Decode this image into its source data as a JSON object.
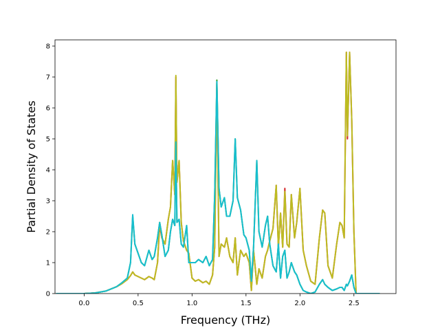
{
  "chart_data": {
    "type": "line",
    "title": "",
    "xlabel": "Frequency (THz)",
    "ylabel": "Partial Density of States",
    "xlim": [
      -0.27,
      2.89
    ],
    "ylim": [
      0,
      8.2
    ],
    "xticks": [
      0.0,
      0.5,
      1.0,
      1.5,
      2.0,
      2.5
    ],
    "xtick_labels": [
      "0.0",
      "0.5",
      "1.0",
      "1.5",
      "2.0",
      "2.5"
    ],
    "yticks": [
      0,
      1,
      2,
      3,
      4,
      5,
      6,
      7,
      8
    ],
    "ytick_labels": [
      "0",
      "1",
      "2",
      "3",
      "4",
      "5",
      "6",
      "7",
      "8"
    ],
    "grid": false,
    "legend": "none",
    "series": [
      {
        "color": "#d62728",
        "x": [
          -0.26,
          0.0,
          0.1,
          0.2,
          0.3,
          0.35,
          0.4,
          0.43,
          0.45,
          0.47,
          0.5,
          0.53,
          0.56,
          0.6,
          0.63,
          0.65,
          0.68,
          0.7,
          0.72,
          0.75,
          0.78,
          0.8,
          0.82,
          0.84,
          0.85,
          0.86,
          0.88,
          0.9,
          0.92,
          0.95,
          0.97,
          1.0,
          1.03,
          1.06,
          1.1,
          1.13,
          1.16,
          1.19,
          1.21,
          1.23,
          1.25,
          1.27,
          1.3,
          1.32,
          1.35,
          1.38,
          1.4,
          1.42,
          1.45,
          1.48,
          1.5,
          1.53,
          1.55,
          1.57,
          1.6,
          1.62,
          1.65,
          1.68,
          1.7,
          1.72,
          1.75,
          1.78,
          1.8,
          1.82,
          1.84,
          1.86,
          1.88,
          1.9,
          1.92,
          1.95,
          1.97,
          2.0,
          2.03,
          2.06,
          2.1,
          2.14,
          2.18,
          2.21,
          2.23,
          2.26,
          2.3,
          2.34,
          2.37,
          2.39,
          2.41,
          2.43,
          2.44,
          2.46,
          2.48,
          2.5,
          2.52,
          2.55,
          2.6,
          2.74
        ],
        "y": [
          0,
          0,
          0.02,
          0.08,
          0.22,
          0.32,
          0.45,
          0.58,
          0.7,
          0.6,
          0.55,
          0.5,
          0.45,
          0.55,
          0.5,
          0.45,
          1.0,
          2.2,
          1.8,
          1.6,
          2.4,
          2.8,
          4.3,
          3.2,
          7.0,
          3.6,
          4.3,
          2.3,
          1.7,
          1.4,
          1.3,
          0.5,
          0.4,
          0.45,
          0.35,
          0.4,
          0.3,
          0.6,
          1.5,
          6.8,
          1.2,
          1.6,
          1.5,
          1.8,
          1.2,
          1.0,
          1.8,
          0.6,
          1.4,
          1.2,
          1.3,
          1.0,
          0.1,
          1.4,
          0.3,
          0.8,
          0.5,
          1.2,
          1.4,
          1.7,
          2.1,
          3.5,
          1.5,
          2.6,
          1.5,
          3.4,
          1.6,
          1.5,
          3.2,
          1.8,
          2.3,
          3.4,
          1.4,
          0.9,
          0.4,
          0.3,
          1.8,
          2.7,
          2.6,
          0.9,
          0.5,
          1.6,
          2.3,
          2.2,
          1.8,
          7.8,
          5.0,
          7.8,
          5.6,
          2.0,
          0.0,
          0.0,
          0.0,
          0.0
        ]
      },
      {
        "color": "#2ca02c",
        "x": [
          -0.26,
          0.0,
          0.1,
          0.2,
          0.3,
          0.35,
          0.4,
          0.43,
          0.45,
          0.47,
          0.5,
          0.53,
          0.56,
          0.6,
          0.63,
          0.65,
          0.68,
          0.7,
          0.72,
          0.75,
          0.78,
          0.8,
          0.82,
          0.84,
          0.85,
          0.86,
          0.88,
          0.9,
          0.92,
          0.95,
          0.97,
          1.0,
          1.03,
          1.06,
          1.1,
          1.13,
          1.16,
          1.19,
          1.21,
          1.23,
          1.25,
          1.27,
          1.3,
          1.32,
          1.35,
          1.38,
          1.4,
          1.42,
          1.45,
          1.48,
          1.5,
          1.53,
          1.55,
          1.57,
          1.6,
          1.62,
          1.65,
          1.68,
          1.7,
          1.72,
          1.75,
          1.78,
          1.8,
          1.82,
          1.84,
          1.86,
          1.88,
          1.9,
          1.92,
          1.95,
          1.97,
          2.0,
          2.03,
          2.06,
          2.1,
          2.14,
          2.18,
          2.21,
          2.23,
          2.26,
          2.3,
          2.34,
          2.37,
          2.39,
          2.41,
          2.43,
          2.44,
          2.46,
          2.48,
          2.5,
          2.52,
          2.55,
          2.6,
          2.74
        ],
        "y": [
          0,
          0,
          0.02,
          0.08,
          0.22,
          0.35,
          0.5,
          1.0,
          2.5,
          1.6,
          1.3,
          1.0,
          0.9,
          1.4,
          1.1,
          1.2,
          1.8,
          2.3,
          1.9,
          1.2,
          1.4,
          2.0,
          2.4,
          2.2,
          4.9,
          2.3,
          2.4,
          1.6,
          1.5,
          2.2,
          1.0,
          1.0,
          1.0,
          1.1,
          1.0,
          1.2,
          0.9,
          1.1,
          3.2,
          6.9,
          3.4,
          2.8,
          3.1,
          2.5,
          2.5,
          3.0,
          5.0,
          3.1,
          2.7,
          1.9,
          1.8,
          1.4,
          0.4,
          1.5,
          4.3,
          2.0,
          1.5,
          2.2,
          2.5,
          1.6,
          0.9,
          0.7,
          1.6,
          0.5,
          1.2,
          1.4,
          0.5,
          0.7,
          1.0,
          0.7,
          0.6,
          0.3,
          0.1,
          0.05,
          0.0,
          0.05,
          0.3,
          0.45,
          0.3,
          0.2,
          0.1,
          0.15,
          0.2,
          0.2,
          0.1,
          0.3,
          0.25,
          0.4,
          0.6,
          0.2,
          0.0,
          0.0,
          0.0,
          0.0
        ]
      },
      {
        "color": "#bcbd22",
        "x": [
          -0.26,
          0.0,
          0.1,
          0.2,
          0.3,
          0.35,
          0.4,
          0.43,
          0.45,
          0.47,
          0.5,
          0.53,
          0.56,
          0.6,
          0.63,
          0.65,
          0.68,
          0.7,
          0.72,
          0.75,
          0.78,
          0.8,
          0.82,
          0.84,
          0.85,
          0.86,
          0.88,
          0.9,
          0.92,
          0.95,
          0.97,
          1.0,
          1.03,
          1.06,
          1.1,
          1.13,
          1.16,
          1.19,
          1.21,
          1.23,
          1.25,
          1.27,
          1.3,
          1.32,
          1.35,
          1.38,
          1.4,
          1.42,
          1.45,
          1.48,
          1.5,
          1.53,
          1.55,
          1.57,
          1.6,
          1.62,
          1.65,
          1.68,
          1.7,
          1.72,
          1.75,
          1.78,
          1.8,
          1.82,
          1.84,
          1.86,
          1.88,
          1.9,
          1.92,
          1.95,
          1.97,
          2.0,
          2.03,
          2.06,
          2.1,
          2.14,
          2.18,
          2.21,
          2.23,
          2.26,
          2.3,
          2.34,
          2.37,
          2.39,
          2.41,
          2.43,
          2.44,
          2.46,
          2.48,
          2.5,
          2.52,
          2.55,
          2.6,
          2.74
        ],
        "y": [
          0,
          0,
          0.02,
          0.08,
          0.22,
          0.32,
          0.45,
          0.58,
          0.7,
          0.6,
          0.55,
          0.5,
          0.45,
          0.55,
          0.5,
          0.45,
          1.0,
          2.3,
          1.8,
          1.6,
          2.4,
          2.8,
          4.3,
          3.2,
          7.05,
          3.6,
          4.3,
          2.3,
          1.7,
          1.4,
          1.3,
          0.5,
          0.4,
          0.45,
          0.35,
          0.4,
          0.3,
          0.6,
          1.5,
          6.8,
          1.2,
          1.6,
          1.5,
          1.8,
          1.2,
          1.0,
          1.8,
          0.6,
          1.4,
          1.2,
          1.3,
          1.0,
          0.1,
          1.4,
          0.3,
          0.8,
          0.5,
          1.2,
          1.4,
          1.7,
          2.1,
          3.5,
          1.5,
          2.6,
          1.5,
          3.3,
          1.6,
          1.5,
          3.2,
          1.8,
          2.3,
          3.4,
          1.4,
          0.9,
          0.4,
          0.3,
          1.8,
          2.7,
          2.6,
          0.9,
          0.5,
          1.6,
          2.3,
          2.2,
          1.8,
          7.8,
          5.1,
          7.8,
          5.6,
          2.0,
          0.0,
          0.0,
          0.0,
          0.0
        ]
      },
      {
        "color": "#17becf",
        "x": [
          -0.26,
          0.0,
          0.1,
          0.2,
          0.3,
          0.35,
          0.4,
          0.43,
          0.45,
          0.47,
          0.5,
          0.53,
          0.56,
          0.6,
          0.63,
          0.65,
          0.68,
          0.7,
          0.72,
          0.75,
          0.78,
          0.8,
          0.82,
          0.84,
          0.85,
          0.86,
          0.88,
          0.9,
          0.92,
          0.95,
          0.97,
          1.0,
          1.03,
          1.06,
          1.1,
          1.13,
          1.16,
          1.19,
          1.21,
          1.23,
          1.25,
          1.27,
          1.3,
          1.32,
          1.35,
          1.38,
          1.4,
          1.42,
          1.45,
          1.48,
          1.5,
          1.53,
          1.55,
          1.57,
          1.6,
          1.62,
          1.65,
          1.68,
          1.7,
          1.72,
          1.75,
          1.78,
          1.8,
          1.82,
          1.84,
          1.86,
          1.88,
          1.9,
          1.92,
          1.95,
          1.97,
          2.0,
          2.03,
          2.06,
          2.1,
          2.14,
          2.18,
          2.21,
          2.23,
          2.26,
          2.3,
          2.34,
          2.37,
          2.39,
          2.41,
          2.43,
          2.44,
          2.46,
          2.48,
          2.5,
          2.52,
          2.55,
          2.6,
          2.74
        ],
        "y": [
          0,
          0,
          0.02,
          0.08,
          0.22,
          0.35,
          0.5,
          1.0,
          2.55,
          1.6,
          1.3,
          1.0,
          0.9,
          1.4,
          1.1,
          1.2,
          1.8,
          2.3,
          1.9,
          1.2,
          1.4,
          2.0,
          2.4,
          2.2,
          4.9,
          2.3,
          2.4,
          1.6,
          1.5,
          2.2,
          1.0,
          1.0,
          1.0,
          1.1,
          1.0,
          1.2,
          0.9,
          1.1,
          3.2,
          6.85,
          3.4,
          2.8,
          3.1,
          2.5,
          2.5,
          3.0,
          5.0,
          3.1,
          2.7,
          1.9,
          1.8,
          1.4,
          0.4,
          1.5,
          4.3,
          2.0,
          1.5,
          2.2,
          2.5,
          1.6,
          0.9,
          0.7,
          1.6,
          0.5,
          1.2,
          1.4,
          0.5,
          0.7,
          1.0,
          0.7,
          0.6,
          0.3,
          0.1,
          0.05,
          0.0,
          0.05,
          0.3,
          0.45,
          0.3,
          0.2,
          0.1,
          0.15,
          0.2,
          0.2,
          0.1,
          0.3,
          0.25,
          0.4,
          0.6,
          0.2,
          0.0,
          0.0,
          0.0,
          0.0
        ]
      }
    ]
  }
}
